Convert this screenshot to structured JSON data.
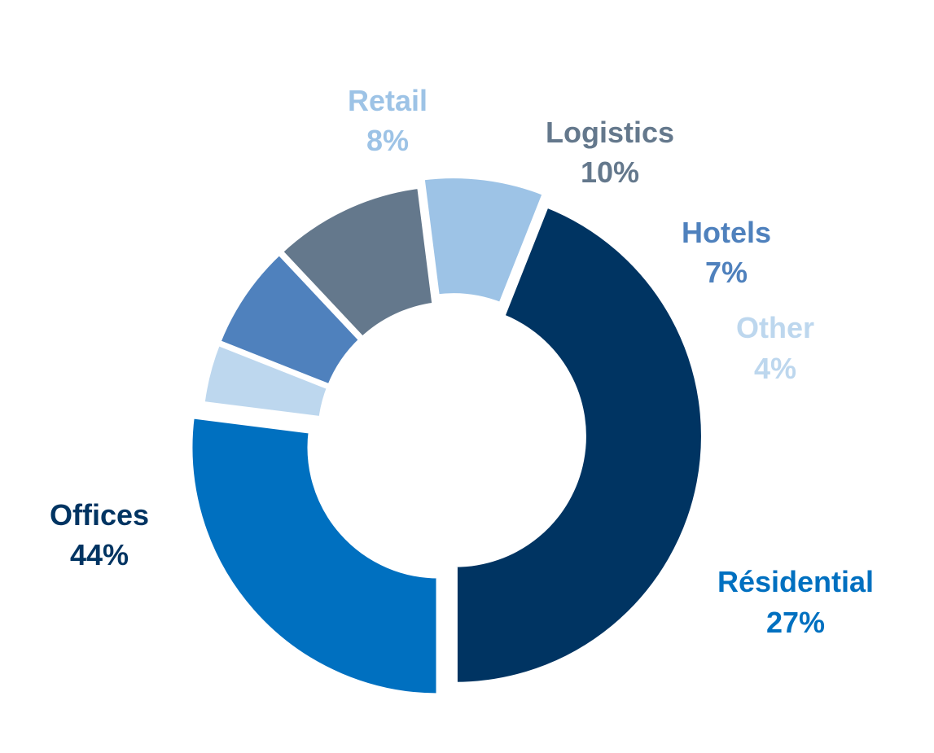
{
  "chart_data": {
    "type": "pie",
    "donut": true,
    "legend": "none",
    "slices": [
      {
        "label": "Résidential",
        "value_label": "27%",
        "value": 27,
        "color": "#0070c0"
      },
      {
        "label": "Other",
        "value_label": "4%",
        "value": 4,
        "color": "#bdd7ee"
      },
      {
        "label": "Hotels",
        "value_label": "7%",
        "value": 7,
        "color": "#4f81bd"
      },
      {
        "label": "Logistics",
        "value_label": "10%",
        "value": 10,
        "color": "#64788c"
      },
      {
        "label": "Retail",
        "value_label": "8%",
        "value": 8,
        "color": "#9dc3e6"
      },
      {
        "label": "Offices",
        "value_label": "44%",
        "value": 44,
        "color": "#003462"
      }
    ]
  }
}
